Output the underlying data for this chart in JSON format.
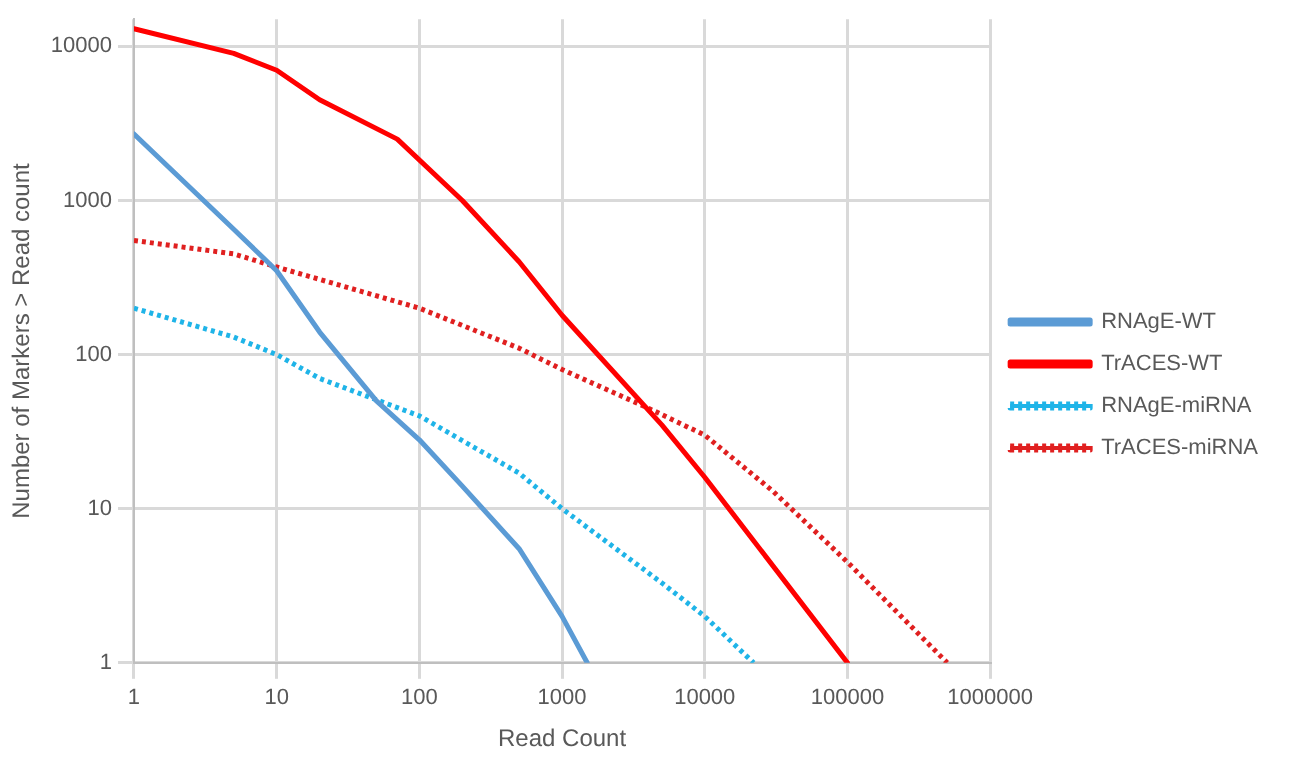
{
  "chart_data": {
    "type": "line",
    "xlabel": "Read Count",
    "ylabel": "Number of Markers > Read count",
    "log": "xy",
    "grid": true,
    "legend": "right",
    "marker": "none",
    "xlim": [
      1,
      1000000
    ],
    "xticks": [
      1,
      10,
      100,
      1000,
      10000,
      100000,
      1000000
    ],
    "ylim": [
      1,
      15000
    ],
    "yticks": [
      1,
      10,
      100,
      1000,
      10000
    ],
    "series": [
      {
        "name": "RNAgE-WT",
        "color": "#5b9bd5",
        "line_style": "solid",
        "x": [
          1,
          5,
          10,
          20,
          50,
          100,
          200,
          500,
          1000,
          1500
        ],
        "values": [
          2700,
          650,
          350,
          140,
          50,
          28,
          14,
          5.5,
          2,
          1
        ]
      },
      {
        "name": "TrACES-WT",
        "color": "#ff0000",
        "line_style": "solid",
        "x": [
          1,
          5,
          10,
          20,
          70,
          200,
          500,
          1000,
          5000,
          10000,
          100000
        ],
        "values": [
          13000,
          9000,
          7000,
          4500,
          2500,
          1000,
          400,
          180,
          35,
          16,
          1
        ]
      },
      {
        "name": "RNAgE-miRNA",
        "color": "#1fb4e8",
        "line_style": "dotted",
        "x": [
          1,
          5,
          10,
          20,
          100,
          500,
          1000,
          5000,
          10000,
          22000
        ],
        "values": [
          200,
          130,
          100,
          70,
          40,
          17,
          10,
          3.3,
          2,
          1
        ]
      },
      {
        "name": "TrACES-miRNA",
        "color": "#e02020",
        "line_style": "dotted",
        "x": [
          1,
          5,
          10,
          100,
          500,
          1000,
          4000,
          10000,
          30000,
          100000,
          500000
        ],
        "values": [
          550,
          450,
          370,
          200,
          110,
          80,
          45,
          30,
          13,
          4.5,
          1
        ]
      }
    ]
  }
}
